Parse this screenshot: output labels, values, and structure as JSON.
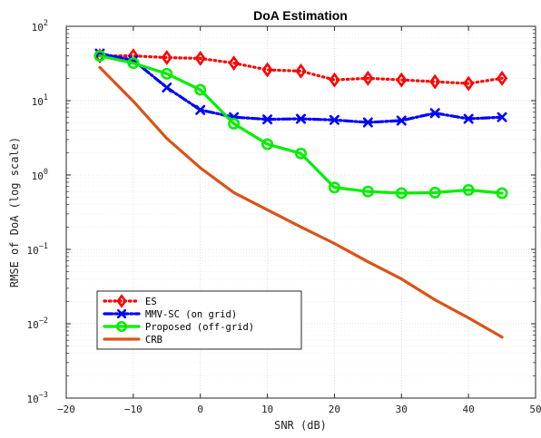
{
  "chart_data": {
    "type": "line",
    "title": "DoA Estimation",
    "xlabel": "SNR (dB)",
    "ylabel": "RMSE of DoA (log scale)",
    "xlim": [
      -20,
      50
    ],
    "ylim": [
      0.001,
      100
    ],
    "yscale": "log",
    "grid": true,
    "x_ticks": [
      -20,
      -10,
      0,
      10,
      20,
      30,
      40,
      50
    ],
    "x_tick_labels": [
      "−20",
      "−10",
      "0",
      "10",
      "20",
      "30",
      "40",
      "50"
    ],
    "y_ticks": [
      {
        "base": "10",
        "exp": "2"
      },
      {
        "base": "10",
        "exp": "1"
      },
      {
        "base": "10",
        "exp": "0"
      },
      {
        "base": "10",
        "exp": "−1"
      },
      {
        "base": "10",
        "exp": "−2"
      },
      {
        "base": "10",
        "exp": "−3"
      }
    ],
    "legend_position": "bottom-left",
    "series": [
      {
        "name": "ES",
        "color": "#ff0000",
        "line_style": "dotted",
        "marker": "diamond",
        "x": [
          -15,
          -10,
          -5,
          0,
          5,
          10,
          15,
          20,
          25,
          30,
          35,
          40,
          45
        ],
        "y": [
          40,
          40,
          38,
          37,
          32,
          26,
          25,
          19,
          20,
          19,
          18,
          17,
          20
        ]
      },
      {
        "name": "MMV-SC (on grid)",
        "color": "#0000ff",
        "line_style": "dashdot",
        "marker": "x",
        "x": [
          -15,
          -10,
          -5,
          0,
          5,
          10,
          15,
          20,
          25,
          30,
          35,
          40,
          45
        ],
        "y": [
          43,
          35,
          15,
          7.5,
          6,
          5.6,
          5.7,
          5.5,
          5.1,
          5.4,
          6.8,
          5.7,
          6
        ]
      },
      {
        "name": "Proposed (off-grid)",
        "color": "#00ee00",
        "line_style": "solid",
        "marker": "circle",
        "x": [
          -15,
          -10,
          -5,
          0,
          5,
          10,
          15,
          20,
          25,
          30,
          35,
          40,
          45
        ],
        "y": [
          40,
          32,
          23,
          14,
          4.9,
          2.6,
          1.95,
          0.68,
          0.6,
          0.57,
          0.58,
          0.63,
          0.57
        ]
      },
      {
        "name": "CRB",
        "color": "#d95319",
        "line_style": "solid",
        "marker": "none",
        "x": [
          -15,
          -10,
          -5,
          0,
          5,
          10,
          15,
          20,
          25,
          30,
          35,
          40,
          45
        ],
        "y": [
          28,
          9.8,
          3.1,
          1.25,
          0.58,
          0.34,
          0.2,
          0.12,
          0.068,
          0.04,
          0.021,
          0.012,
          0.0066
        ]
      }
    ]
  }
}
